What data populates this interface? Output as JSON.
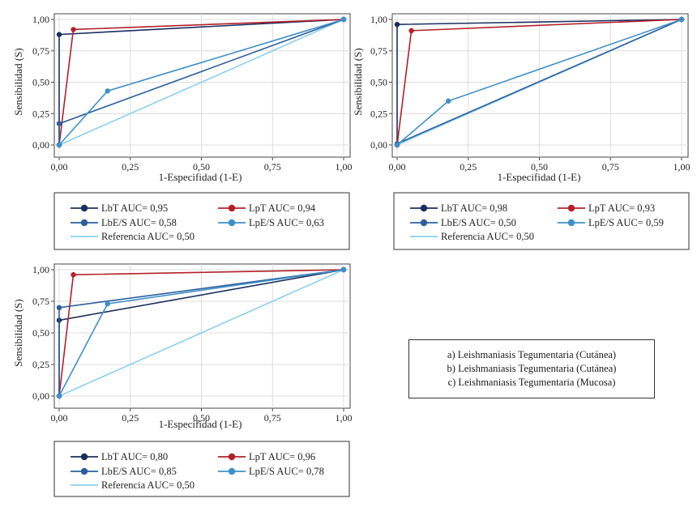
{
  "chart_data": [
    {
      "type": "line",
      "xlabel": "1-Especifidad (1-E)",
      "ylabel": "Sensibilidad (S)",
      "xlim": [
        0,
        1
      ],
      "ylim": [
        0,
        1
      ],
      "xticks": [
        "0,00",
        "0,25",
        "0,50",
        "0,75",
        "1,00"
      ],
      "yticks": [
        "0,00",
        "0,25",
        "0,50",
        "0,75",
        "1,00"
      ],
      "grid": true,
      "series": [
        {
          "name": "LbT AUC= 0,95",
          "color": "#1b2f5e",
          "x": [
            0,
            0,
            1
          ],
          "y": [
            0,
            0.88,
            1
          ]
        },
        {
          "name": "LpT AUC= 0,94",
          "color": "#b3202a",
          "x": [
            0,
            0.05,
            1
          ],
          "y": [
            0,
            0.92,
            1
          ]
        },
        {
          "name": "LbE/S AUC= 0,58",
          "color": "#2c5f9e",
          "x": [
            0,
            0,
            1
          ],
          "y": [
            0,
            0.17,
            1
          ]
        },
        {
          "name": "LpE/S AUC= 0,63",
          "color": "#3f8fc9",
          "x": [
            0,
            0.17,
            1
          ],
          "y": [
            0,
            0.43,
            1
          ]
        },
        {
          "name": "Referencia AUC= 0,50",
          "color": "#8ccfee",
          "x": [
            0,
            1
          ],
          "y": [
            0,
            1
          ],
          "markers": false
        }
      ]
    },
    {
      "type": "line",
      "xlabel": "1-Especifidad (1-E)",
      "ylabel": "Sensibilidad (S)",
      "xlim": [
        0,
        1
      ],
      "ylim": [
        0,
        1
      ],
      "xticks": [
        "0,00",
        "0,25",
        "0,50",
        "0,75",
        "1,00"
      ],
      "yticks": [
        "0,00",
        "0,25",
        "0,50",
        "0,75",
        "1,00"
      ],
      "grid": true,
      "series": [
        {
          "name": "LbT AUC= 0,98",
          "color": "#1b2f5e",
          "x": [
            0,
            0,
            1
          ],
          "y": [
            0,
            0.96,
            1
          ]
        },
        {
          "name": "LpT AUC= 0,93",
          "color": "#b3202a",
          "x": [
            0,
            0.05,
            1
          ],
          "y": [
            0,
            0.91,
            1
          ]
        },
        {
          "name": "LbE/S AUC= 0,50",
          "color": "#2c5f9e",
          "x": [
            0,
            0,
            1
          ],
          "y": [
            0,
            0.01,
            1
          ]
        },
        {
          "name": "LpE/S AUC= 0,59",
          "color": "#3f8fc9",
          "x": [
            0,
            0.18,
            1
          ],
          "y": [
            0,
            0.35,
            1
          ]
        },
        {
          "name": "Referencia AUC= 0,50",
          "color": "#8ccfee",
          "x": [
            0,
            1
          ],
          "y": [
            0,
            1
          ],
          "markers": false
        }
      ]
    },
    {
      "type": "line",
      "xlabel": "1-Especifidad (1-E)",
      "ylabel": "Sensibilidad (S)",
      "xlim": [
        0,
        1
      ],
      "ylim": [
        0,
        1
      ],
      "xticks": [
        "0,00",
        "0,25",
        "0,50",
        "0,75",
        "1,00"
      ],
      "yticks": [
        "0,00",
        "0,25",
        "0,50",
        "0,75",
        "1,00"
      ],
      "grid": true,
      "series": [
        {
          "name": "LbT AUC= 0,80",
          "color": "#1b2f5e",
          "x": [
            0,
            0,
            1
          ],
          "y": [
            0,
            0.6,
            1
          ]
        },
        {
          "name": "LpT AUC= 0,96",
          "color": "#b3202a",
          "x": [
            0,
            0.05,
            1
          ],
          "y": [
            0,
            0.96,
            1
          ]
        },
        {
          "name": "LbE/S AUC= 0,85",
          "color": "#2c5f9e",
          "x": [
            0,
            0,
            1
          ],
          "y": [
            0,
            0.7,
            1
          ]
        },
        {
          "name": "LpE/S AUC= 0,78",
          "color": "#3f8fc9",
          "x": [
            0,
            0.17,
            1
          ],
          "y": [
            0,
            0.73,
            1
          ]
        },
        {
          "name": "Referencia AUC= 0,50",
          "color": "#8ccfee",
          "x": [
            0,
            1
          ],
          "y": [
            0,
            1
          ],
          "markers": false
        }
      ]
    }
  ],
  "notes": [
    "a) Leishmaniasis Tegumentaria (Cutánea)",
    "b) Leishmaniasis Tegumentaria (Cutánea)",
    "c) Leishmaniasis Tegumentaria (Mucosa)"
  ]
}
